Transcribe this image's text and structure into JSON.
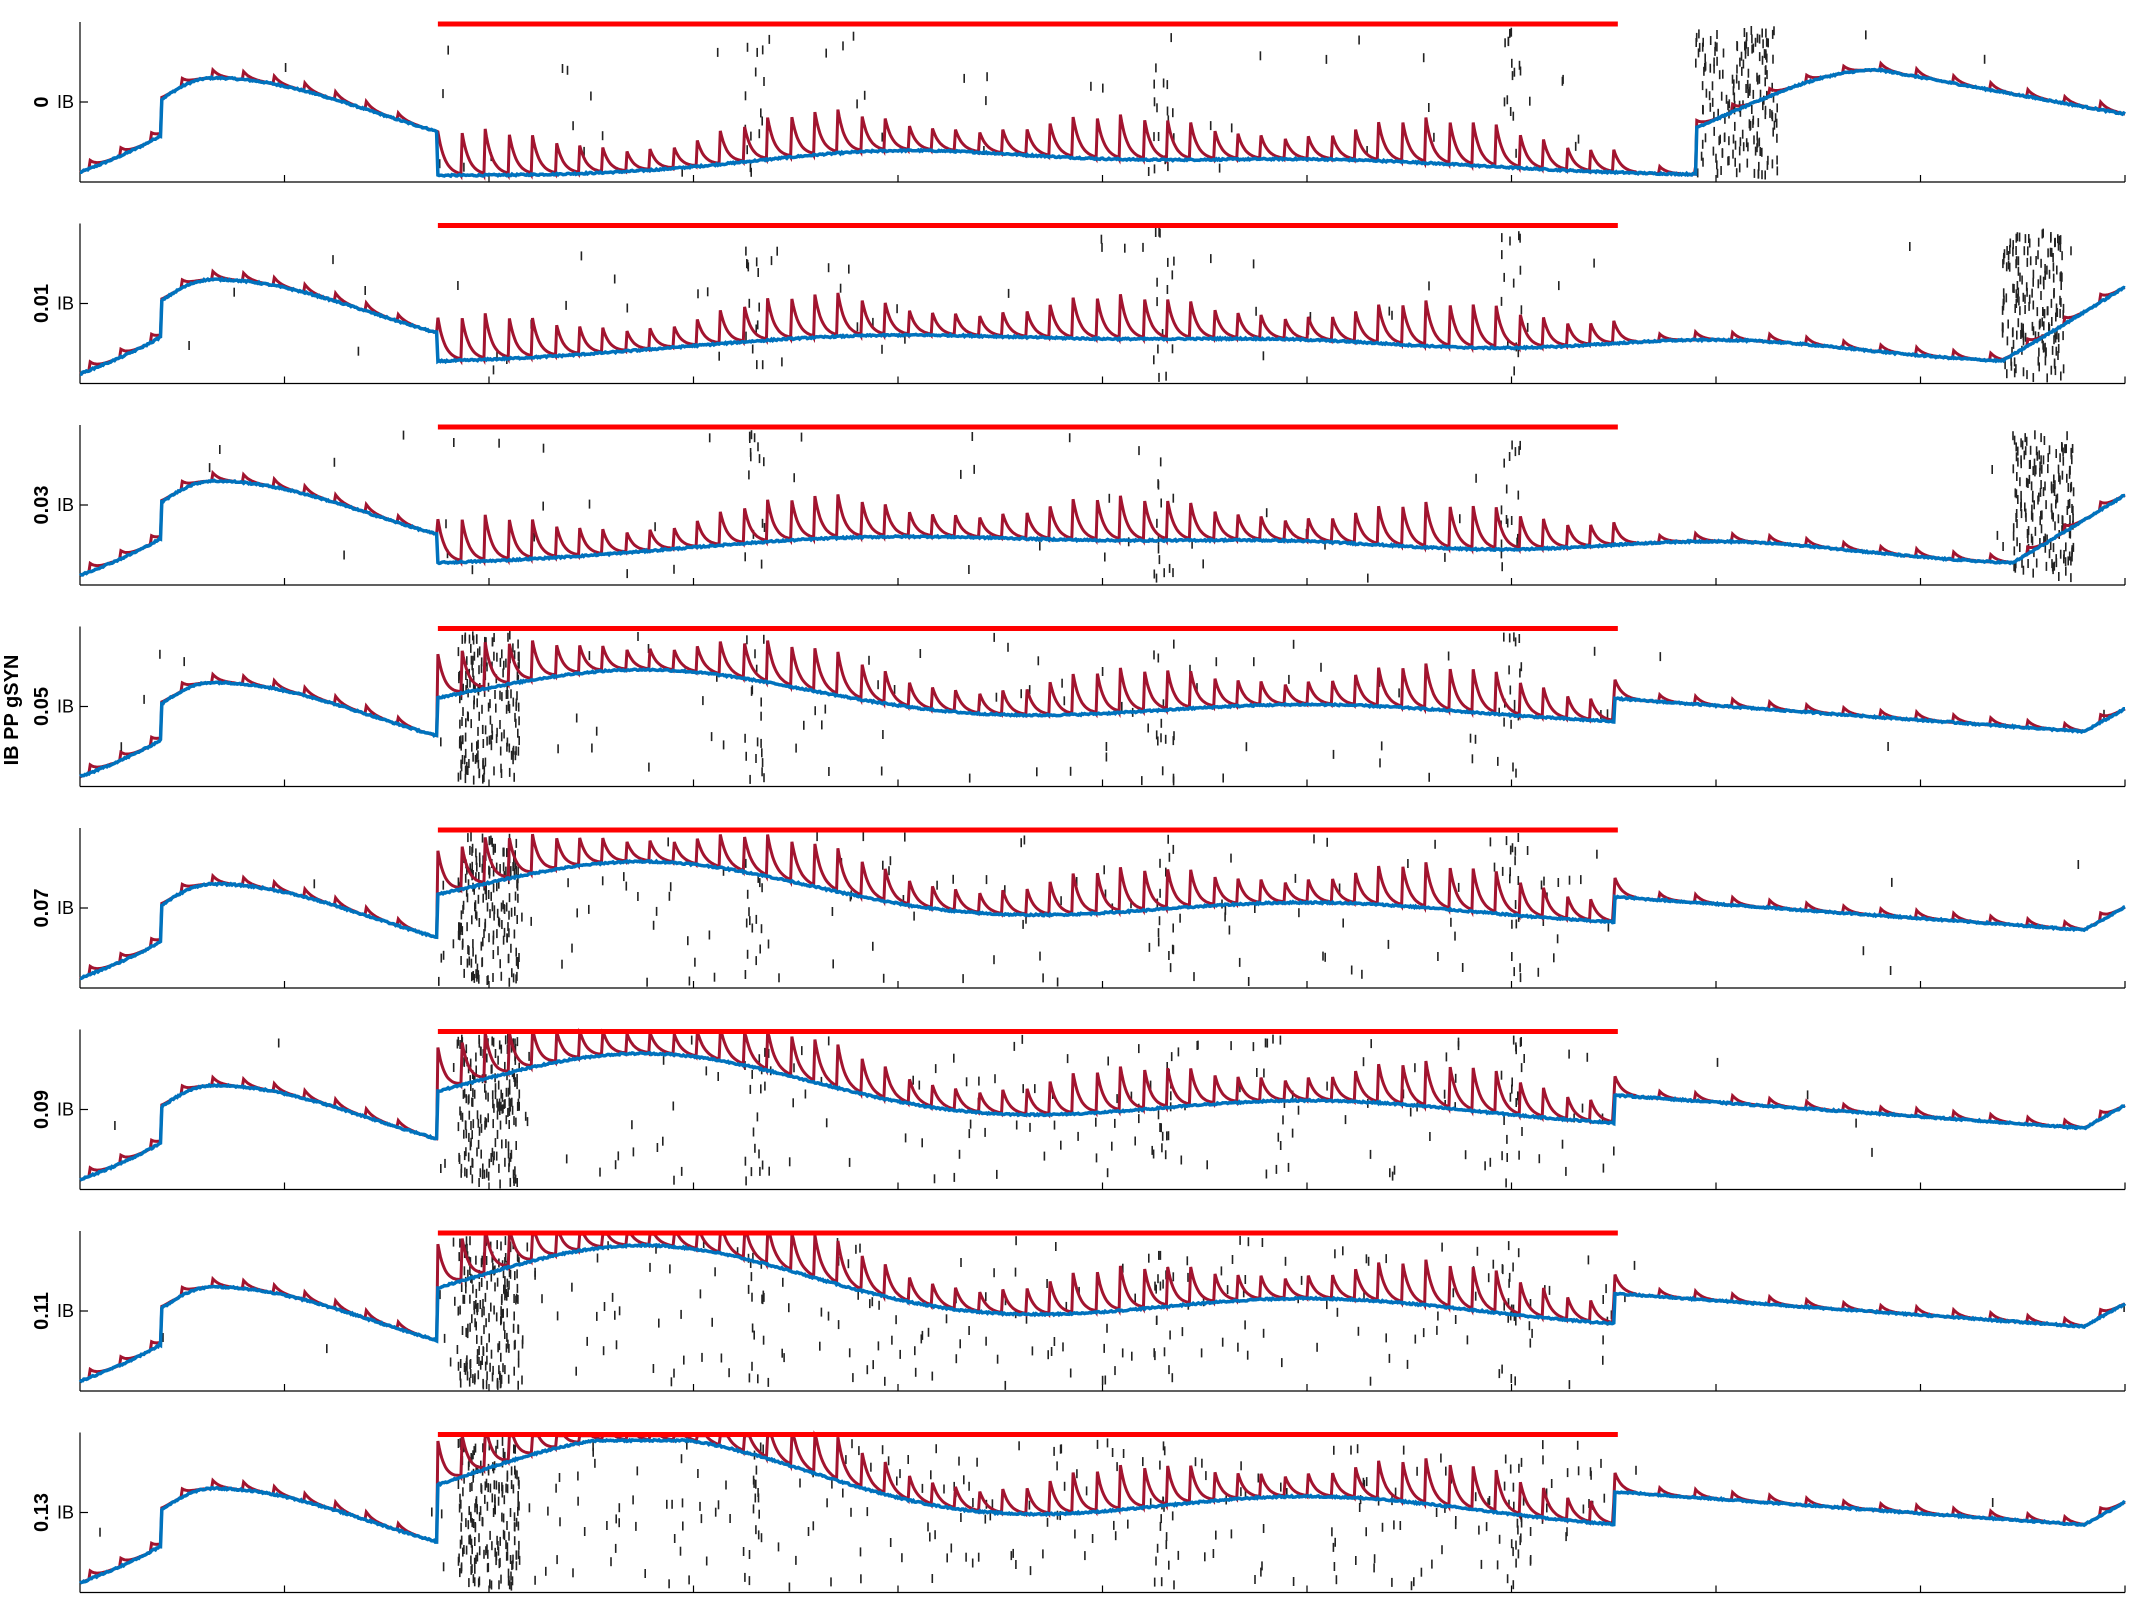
{
  "figure": {
    "ylabel": "IB PP gSYN",
    "colors": {
      "spikes": "#222222",
      "trace_fast": "#A2142F",
      "trace_slow": "#0072BD",
      "stimulus": "#FF0000",
      "axis": "#000000"
    }
  },
  "chart_data": {
    "type": "line",
    "panels": [
      {
        "label": "0",
        "tick": "IB",
        "burst_start": 0.79,
        "burst_end": 0.83,
        "recovery": "late-rise"
      },
      {
        "label": "0.01",
        "tick": "IB",
        "burst_start": 0.94,
        "burst_end": 0.97,
        "recovery": "slow"
      },
      {
        "label": "0.03",
        "tick": "IB",
        "burst_start": 0.945,
        "burst_end": 0.975,
        "recovery": "slow"
      },
      {
        "label": "0.05",
        "tick": "IB",
        "burst_start": 0.185,
        "burst_end": 0.215,
        "recovery": "early"
      },
      {
        "label": "0.07",
        "tick": "IB",
        "burst_start": 0.185,
        "burst_end": 0.215,
        "recovery": "early"
      },
      {
        "label": "0.09",
        "tick": "IB",
        "burst_start": 0.185,
        "burst_end": 0.215,
        "recovery": "early"
      },
      {
        "label": "0.11",
        "tick": "IB",
        "burst_start": 0.185,
        "burst_end": 0.215,
        "recovery": "early"
      },
      {
        "label": "0.13",
        "tick": "IB",
        "burst_start": 0.185,
        "burst_end": 0.215,
        "recovery": "early"
      }
    ],
    "stimulus": {
      "start": 0.175,
      "end": 0.752
    },
    "xlim": [
      0,
      1
    ],
    "grid": false,
    "legend": "none"
  }
}
